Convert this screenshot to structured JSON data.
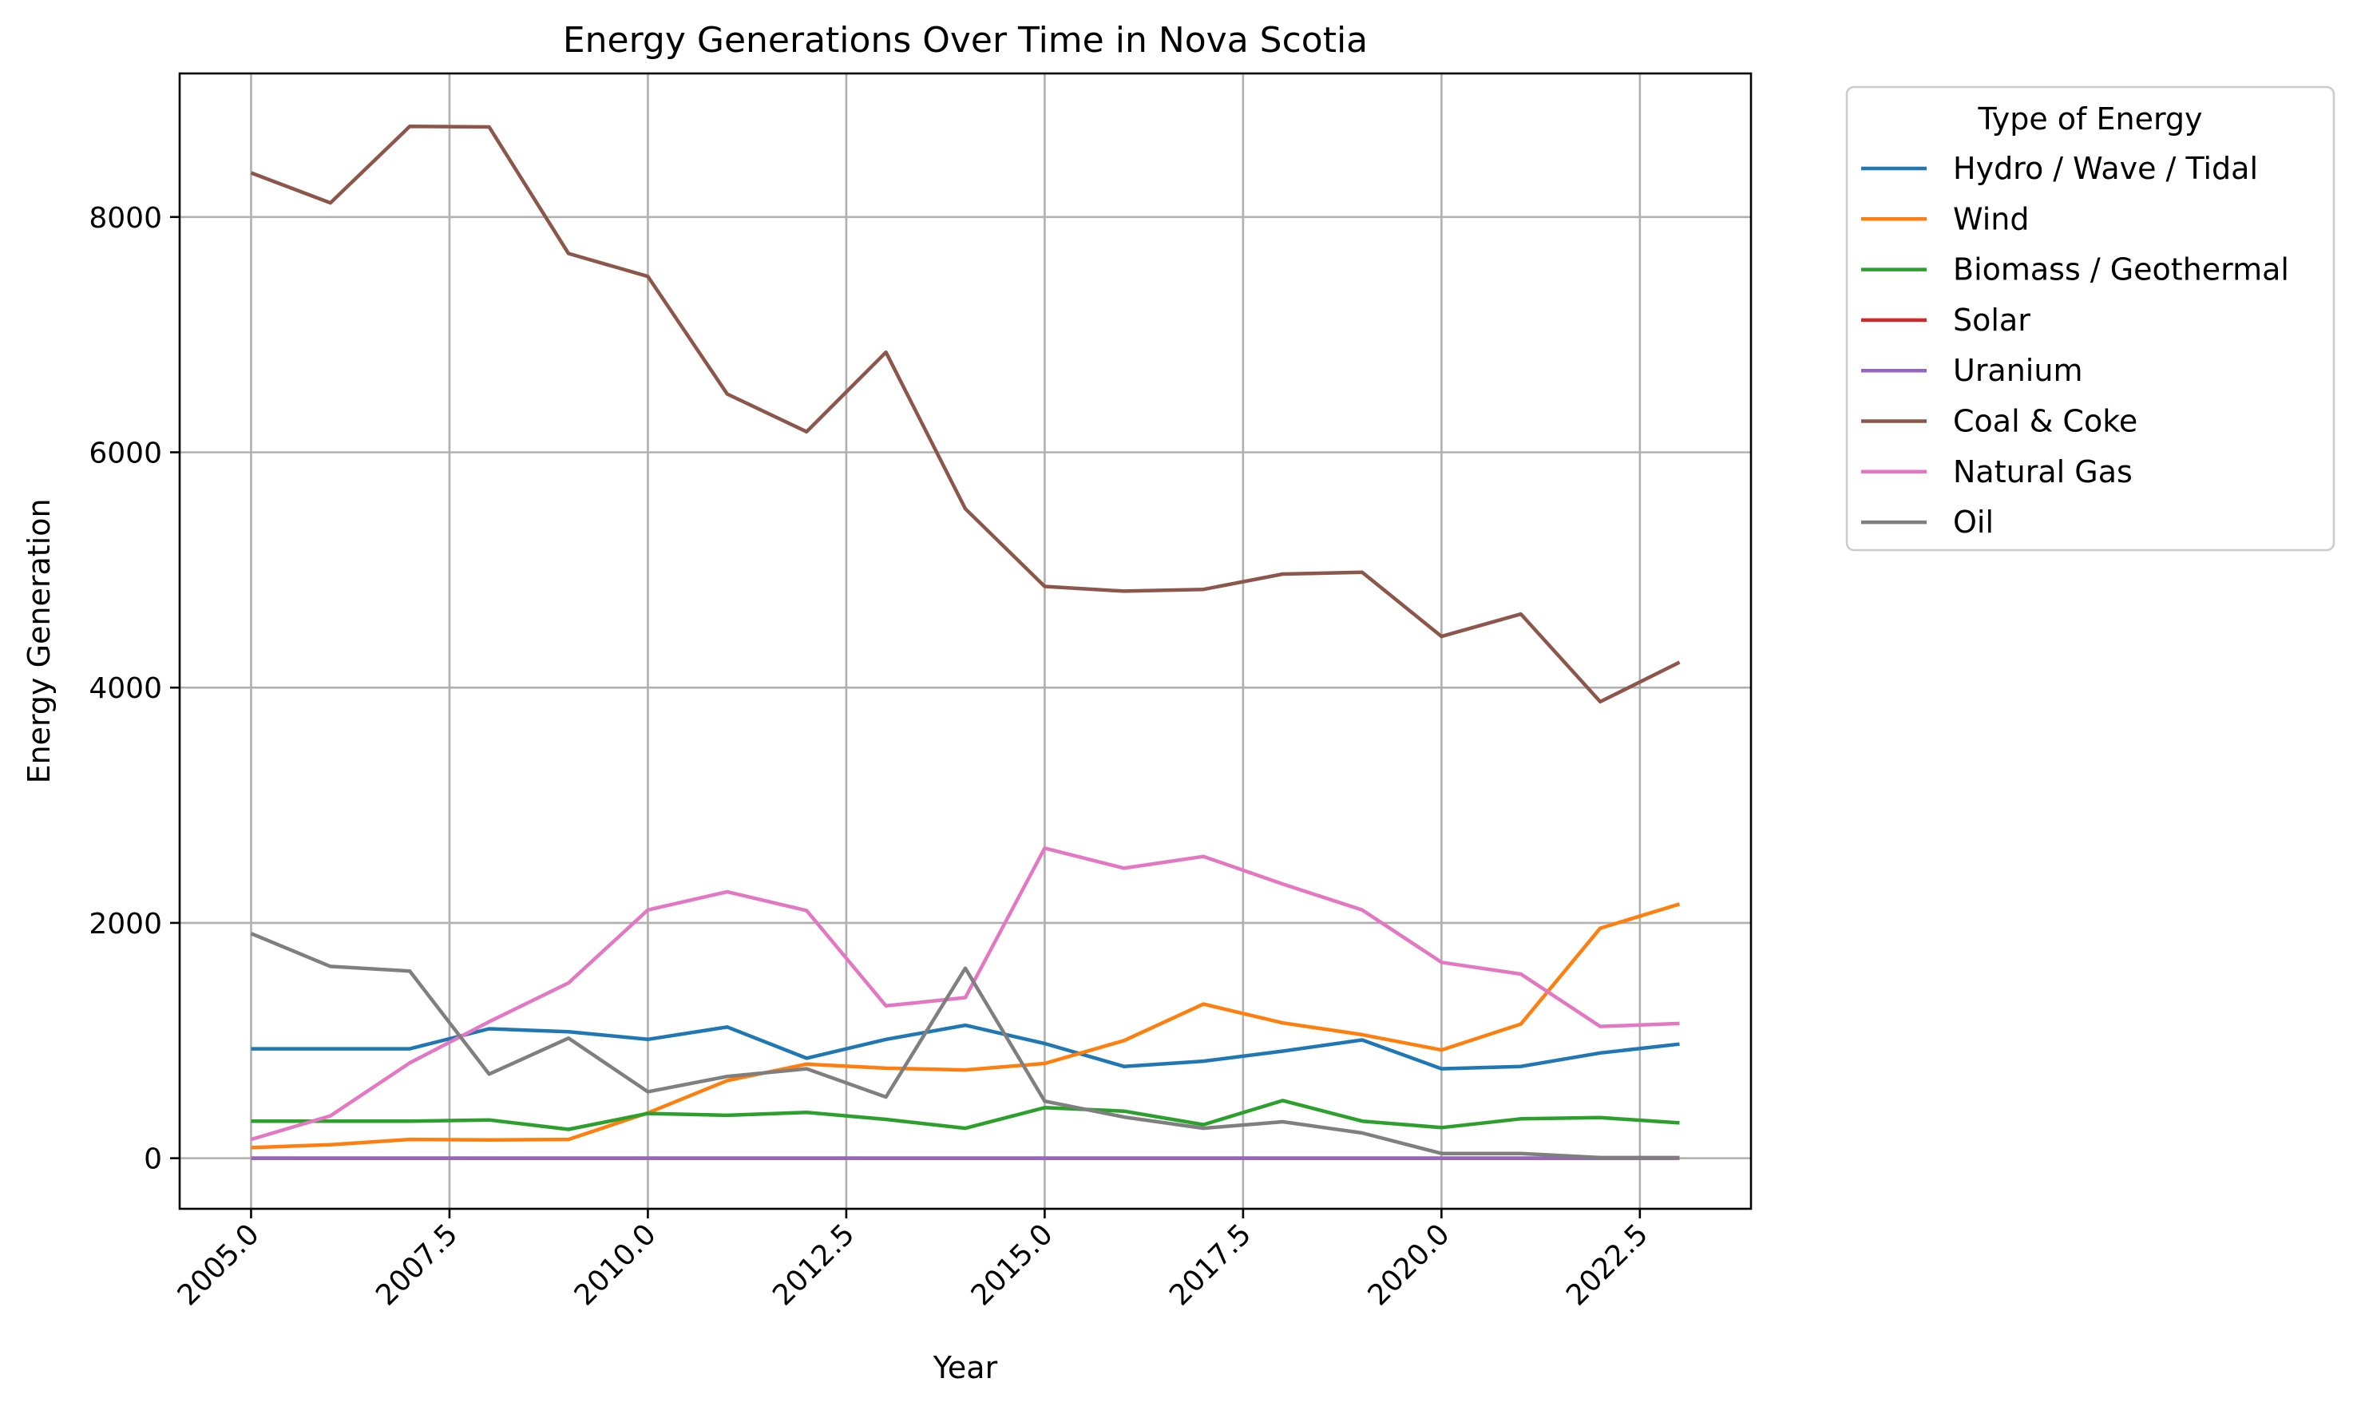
{
  "chart_data": {
    "type": "line",
    "title": "Energy Generations Over Time in Nova Scotia",
    "xlabel": "Year",
    "ylabel": "Energy Generation",
    "xlim": [
      2004.1,
      2023.9
    ],
    "ylim": [
      -430,
      9220
    ],
    "x_ticks": [
      2005.0,
      2007.5,
      2010.0,
      2012.5,
      2015.0,
      2017.5,
      2020.0,
      2022.5
    ],
    "x_tick_labels": [
      "2005.0",
      "2007.5",
      "2010.0",
      "2012.5",
      "2015.0",
      "2017.5",
      "2020.0",
      "2022.5"
    ],
    "y_ticks": [
      0,
      2000,
      4000,
      6000,
      8000
    ],
    "y_tick_labels": [
      "0",
      "2000",
      "4000",
      "6000",
      "8000"
    ],
    "grid": true,
    "legend": {
      "title": "Type of Energy",
      "placement": "outside-top-right"
    },
    "x": [
      2005,
      2006,
      2007,
      2008,
      2009,
      2010,
      2011,
      2012,
      2013,
      2014,
      2015,
      2016,
      2017,
      2018,
      2019,
      2020,
      2021,
      2022,
      2023
    ],
    "series": [
      {
        "name": "Hydro / Wave / Tidal",
        "color": "#1f77b4",
        "values": [
          930,
          930,
          930,
          1100,
          1075,
          1010,
          1115,
          850,
          1010,
          1130,
          975,
          780,
          825,
          910,
          1005,
          760,
          780,
          895,
          970
        ]
      },
      {
        "name": "Wind",
        "color": "#ff7f0e",
        "values": [
          90,
          115,
          160,
          155,
          160,
          385,
          660,
          800,
          765,
          750,
          805,
          1000,
          1310,
          1150,
          1050,
          920,
          1140,
          1955,
          2160
        ]
      },
      {
        "name": "Biomass / Geothermal",
        "color": "#2ca02c",
        "values": [
          315,
          315,
          315,
          325,
          245,
          380,
          365,
          390,
          330,
          255,
          430,
          400,
          285,
          490,
          315,
          260,
          335,
          345,
          300
        ]
      },
      {
        "name": "Solar",
        "color": "#d62728",
        "values": [
          0,
          0,
          0,
          0,
          0,
          0,
          0,
          0,
          0,
          0,
          0,
          0,
          0,
          0,
          0,
          0,
          0,
          0,
          0
        ]
      },
      {
        "name": "Uranium",
        "color": "#9467bd",
        "values": [
          0,
          0,
          0,
          0,
          0,
          0,
          0,
          0,
          0,
          0,
          0,
          0,
          0,
          0,
          0,
          0,
          0,
          0,
          0
        ]
      },
      {
        "name": "Coal & Coke",
        "color": "#8c564b",
        "values": [
          8375,
          8120,
          8770,
          8765,
          7690,
          7495,
          6495,
          6175,
          6850,
          5520,
          4860,
          4820,
          4835,
          4965,
          4980,
          4435,
          4625,
          3880,
          4215
        ]
      },
      {
        "name": "Natural Gas",
        "color": "#e377c2",
        "values": [
          160,
          360,
          810,
          1160,
          1490,
          2110,
          2265,
          2105,
          1295,
          1365,
          2635,
          2465,
          2565,
          2330,
          2110,
          1665,
          1565,
          1120,
          1145
        ]
      },
      {
        "name": "Oil",
        "color": "#7f7f7f",
        "values": [
          1910,
          1630,
          1590,
          715,
          1020,
          565,
          695,
          760,
          520,
          1615,
          485,
          350,
          255,
          310,
          215,
          40,
          40,
          5,
          5
        ]
      }
    ]
  }
}
